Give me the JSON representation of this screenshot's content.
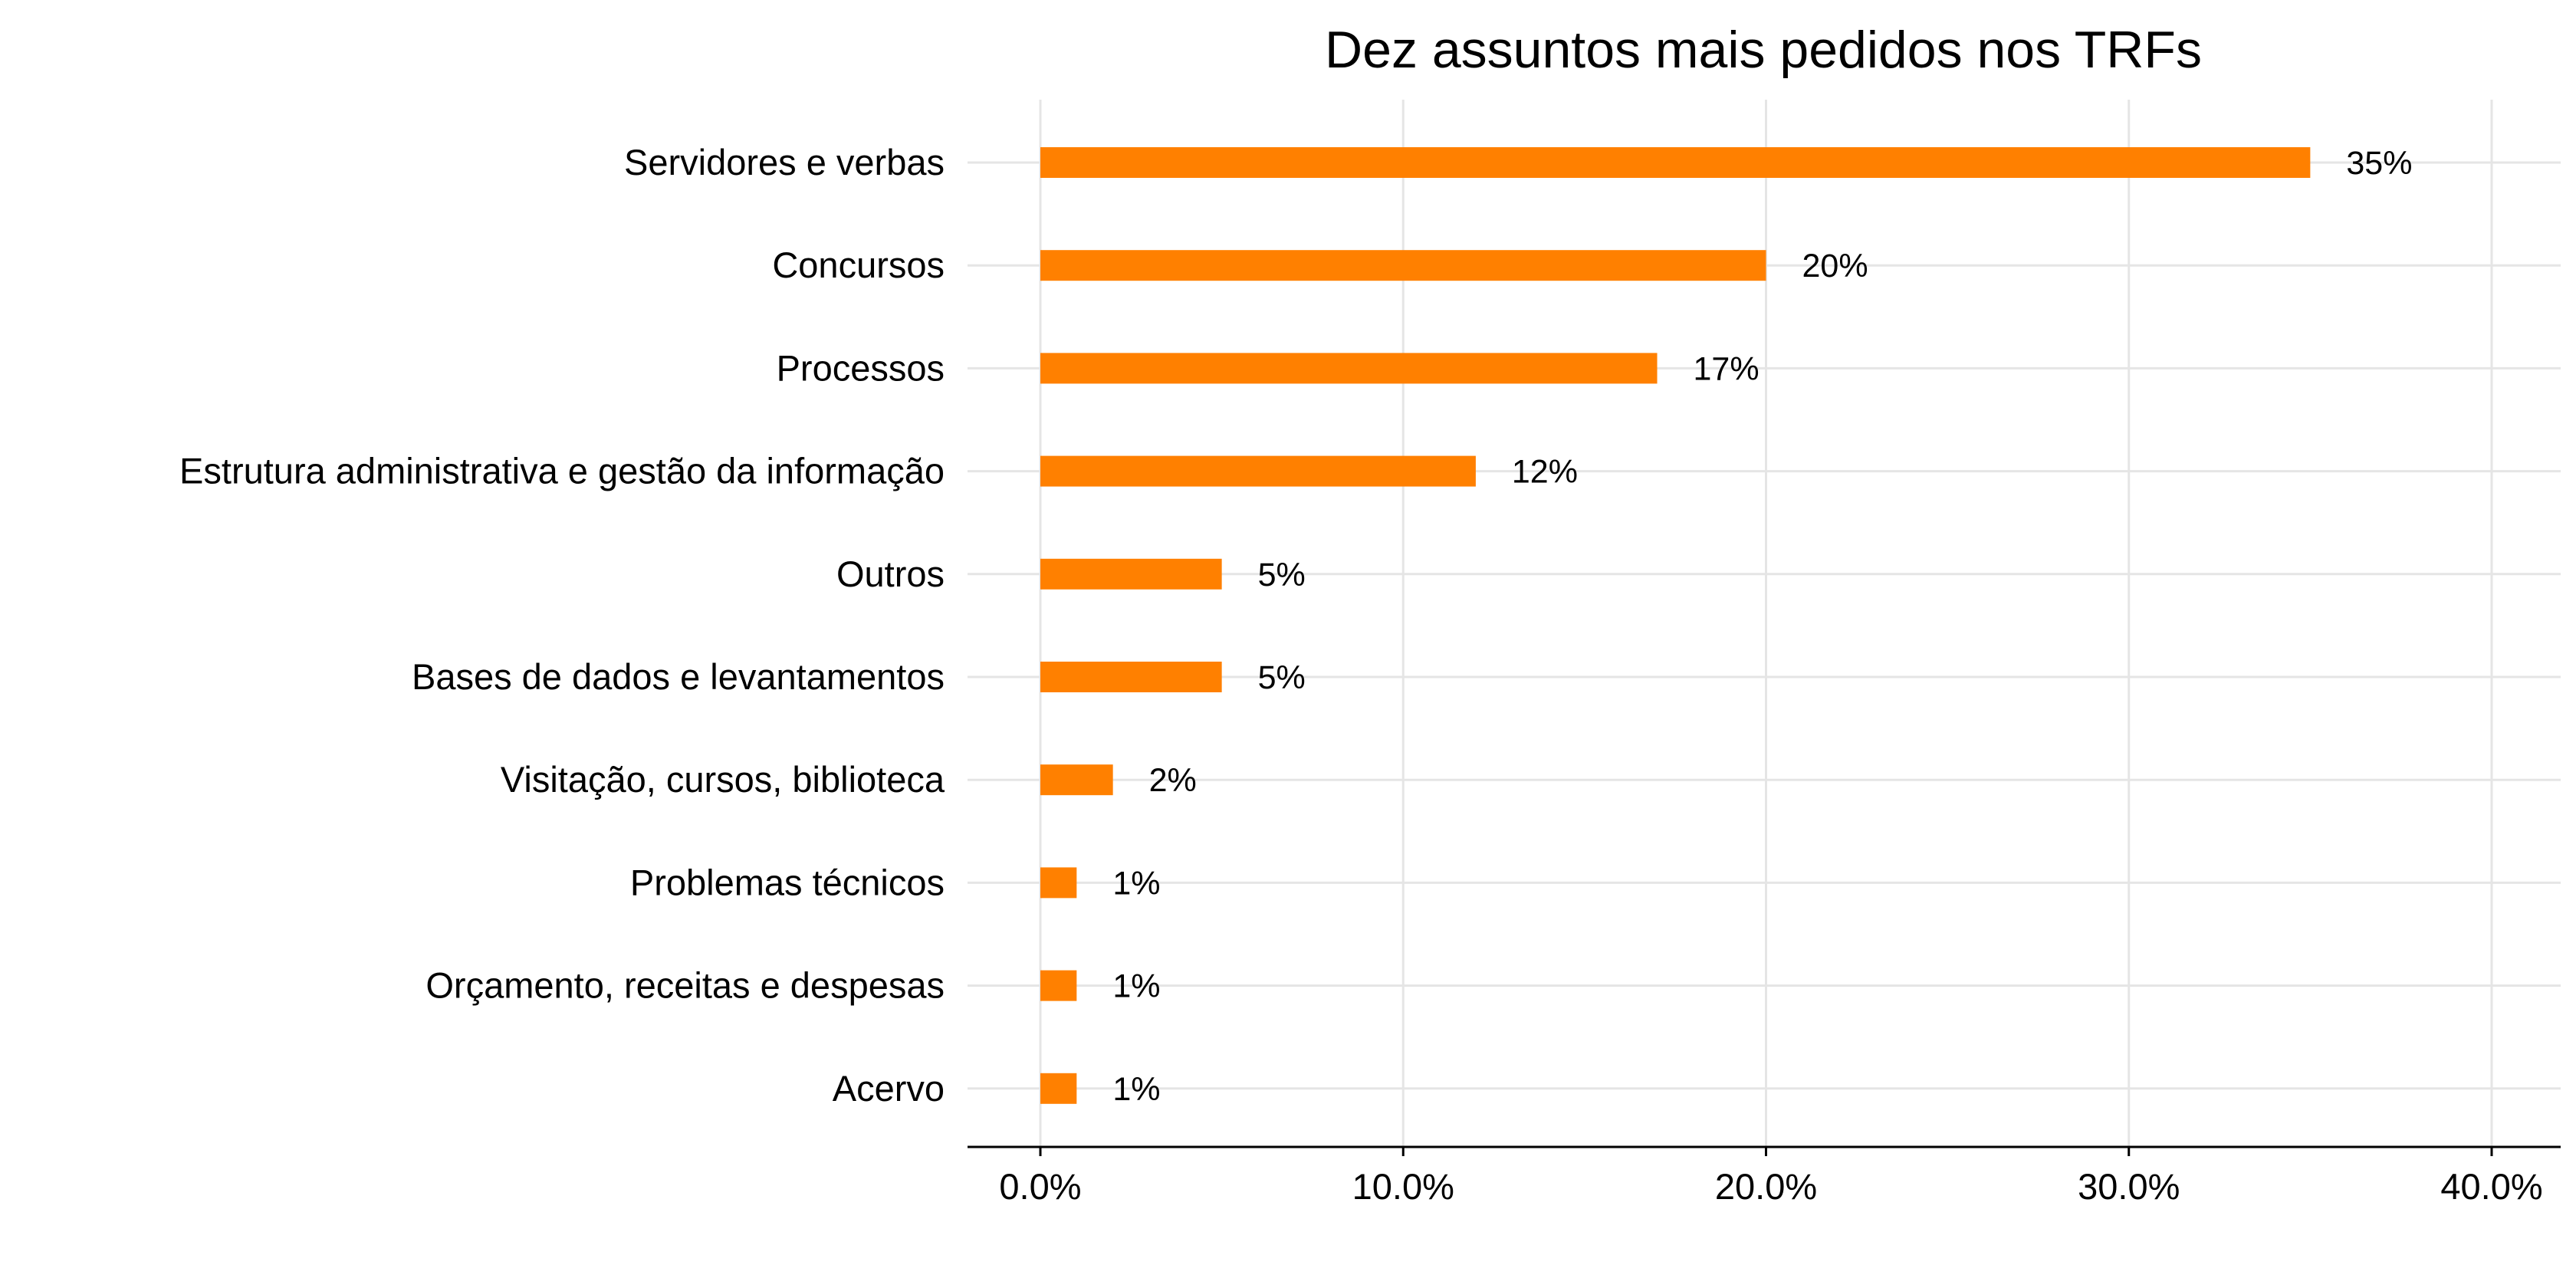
{
  "chart_data": {
    "type": "bar",
    "orientation": "horizontal",
    "title": "Dez assuntos mais pedidos nos TRFs",
    "categories": [
      "Servidores e verbas",
      "Concursos",
      "Processos",
      "Estrutura administrativa e gestão da informação",
      "Outros",
      "Bases de dados e levantamentos",
      "Visitação, cursos, biblioteca",
      "Problemas técnicos",
      "Orçamento, receitas e despesas",
      "Acervo"
    ],
    "values": [
      35,
      20,
      17,
      12,
      5,
      5,
      2,
      1,
      1,
      1
    ],
    "data_labels": [
      "35%",
      "20%",
      "17%",
      "12%",
      "5%",
      "5%",
      "2%",
      "1%",
      "1%",
      "1%"
    ],
    "xlim": [
      0,
      40
    ],
    "x_ticks": [
      0,
      10,
      20,
      30,
      40
    ],
    "x_tick_labels": [
      "0.0%",
      "10.0%",
      "20.0%",
      "30.0%",
      "40.0%"
    ],
    "grid": true,
    "bar_color": "#ff8000",
    "legend": "none"
  }
}
